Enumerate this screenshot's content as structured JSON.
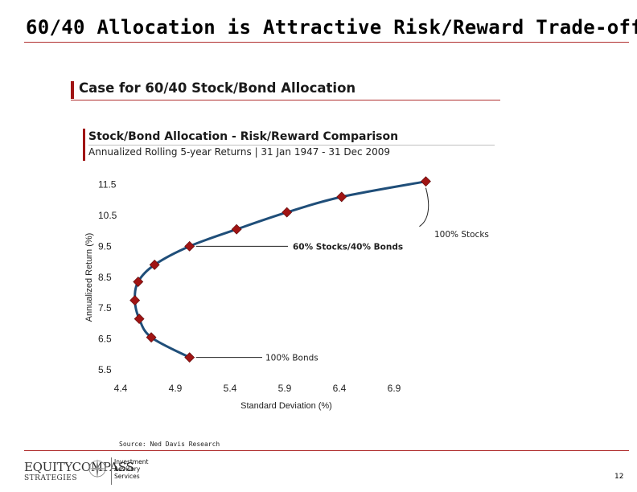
{
  "slide": {
    "title": "60/40 Allocation is Attractive Risk/Reward Trade-off",
    "section_header": "Case for 60/40 Stock/Bond Allocation",
    "source": "Source: Ned Davis Research",
    "page_number": "12"
  },
  "footer": {
    "logo_line1": "EQUITYCOMPASS",
    "logo_line2": "STRATEGIES",
    "tagline_1": "Investment",
    "tagline_2": "Advisory",
    "tagline_3": "Services"
  },
  "colors": {
    "accent_red": "#a01414",
    "curve": "#1f4e79",
    "marker": "#a01414"
  },
  "chart_data": {
    "type": "line",
    "title": "Stock/Bond Allocation - Risk/Reward Comparison",
    "subtitle": "Annualized Rolling 5-year Returns | 31 Jan 1947 - 31 Dec 2009",
    "xlabel": "Standard Deviation (%)",
    "ylabel": "Annualized Return (%)",
    "xlim": [
      4.4,
      7.4
    ],
    "ylim": [
      5.5,
      11.8
    ],
    "xticks": [
      "4.4",
      "4.9",
      "5.4",
      "5.9",
      "6.4",
      "6.9"
    ],
    "yticks": [
      "5.5",
      "6.5",
      "7.5",
      "8.5",
      "9.5",
      "10.5",
      "11.5"
    ],
    "grid": false,
    "legend": "none",
    "series": [
      {
        "x": [
          5.03,
          4.68,
          4.57,
          4.53,
          4.56,
          4.71,
          5.03,
          5.46,
          5.92,
          6.42,
          7.19
        ],
        "y": [
          5.9,
          6.55,
          7.15,
          7.75,
          8.35,
          8.9,
          9.5,
          10.05,
          10.6,
          11.1,
          11.6
        ]
      }
    ],
    "annotations": [
      {
        "text": "100% Stocks",
        "point_index": 10
      },
      {
        "text": "60% Stocks/40% Bonds",
        "point_index": 6
      },
      {
        "text": "100% Bonds",
        "point_index": 0
      }
    ]
  }
}
